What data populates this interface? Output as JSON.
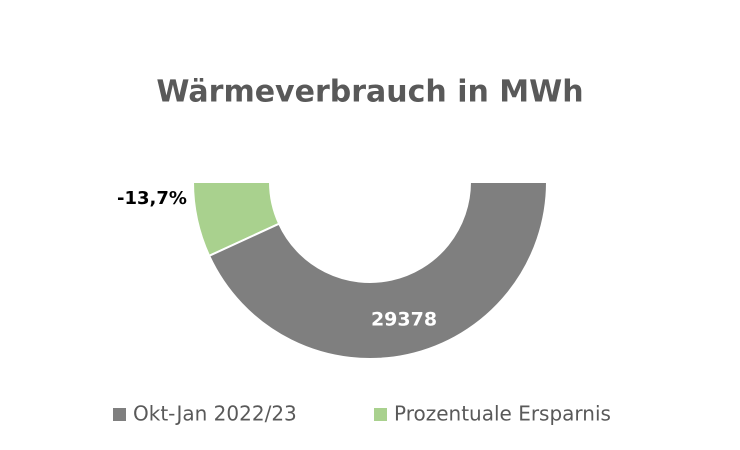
{
  "chart_data": {
    "type": "half-donut",
    "title": "Wärmeverbrauch in MWh",
    "categories": [
      "Okt-Jan 2022/23",
      "Prozentuale Ersparnis"
    ],
    "values": [
      29378,
      -13.7
    ],
    "value_labels": [
      "29378",
      "-13,7%"
    ],
    "colors": [
      "#7f7f7f",
      "#a9d18e"
    ]
  }
}
